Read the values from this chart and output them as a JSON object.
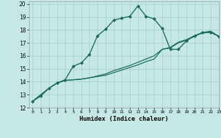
{
  "xlabel": "Humidex (Indice chaleur)",
  "xlim": [
    -0.5,
    23
  ],
  "ylim": [
    12,
    20.2
  ],
  "xticks": [
    0,
    1,
    2,
    3,
    4,
    5,
    6,
    7,
    8,
    9,
    10,
    11,
    12,
    13,
    14,
    15,
    16,
    17,
    18,
    19,
    20,
    21,
    22,
    23
  ],
  "yticks": [
    12,
    13,
    14,
    15,
    16,
    17,
    18,
    19,
    20
  ],
  "bg_color": "#c5e8e5",
  "grid_color": "#aed4d0",
  "line_color": "#1a6b5a",
  "series1_x": [
    0,
    1,
    2,
    3,
    4,
    5,
    6,
    7,
    8,
    9,
    10,
    11,
    12,
    13,
    14,
    15,
    16,
    17,
    18,
    19,
    20,
    21,
    22,
    23
  ],
  "series1_y": [
    12.5,
    12.9,
    13.5,
    13.9,
    14.15,
    15.2,
    15.45,
    16.1,
    17.55,
    18.05,
    18.75,
    18.9,
    19.05,
    19.85,
    19.05,
    18.85,
    18.1,
    16.5,
    16.5,
    17.15,
    17.55,
    17.8,
    17.8,
    17.5
  ],
  "series2_x": [
    0,
    2,
    3,
    4,
    5,
    6,
    7,
    8,
    9,
    10,
    11,
    12,
    13,
    14,
    15,
    16,
    17,
    18,
    19,
    20,
    21,
    22,
    23
  ],
  "series2_y": [
    12.5,
    13.5,
    13.9,
    14.1,
    14.15,
    14.2,
    14.3,
    14.4,
    14.5,
    14.7,
    14.9,
    15.1,
    15.3,
    15.55,
    15.75,
    16.5,
    16.6,
    17.0,
    17.2,
    17.5,
    17.8,
    17.9,
    17.5
  ],
  "series3_x": [
    0,
    2,
    3,
    4,
    5,
    6,
    7,
    8,
    9,
    10,
    11,
    12,
    13,
    14,
    15,
    16,
    17,
    18,
    19,
    20,
    21,
    22,
    23
  ],
  "series3_y": [
    12.5,
    13.5,
    13.9,
    14.1,
    14.15,
    14.2,
    14.3,
    14.45,
    14.6,
    14.85,
    15.05,
    15.25,
    15.5,
    15.75,
    16.0,
    16.5,
    16.65,
    17.05,
    17.25,
    17.55,
    17.75,
    17.85,
    17.5
  ]
}
